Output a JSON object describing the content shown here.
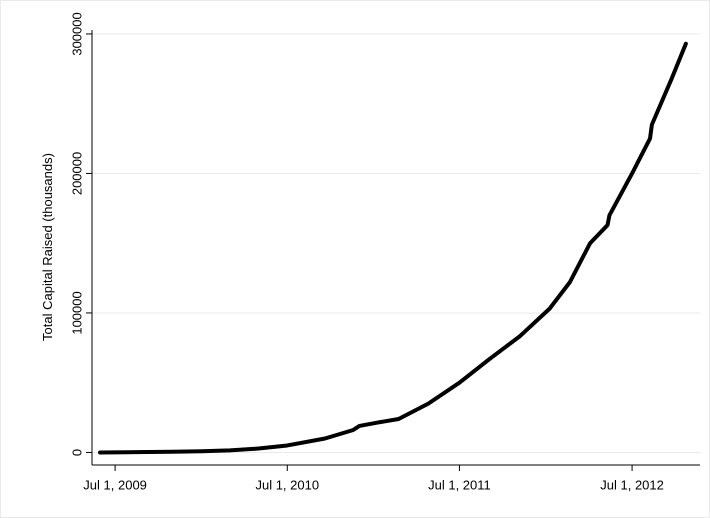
{
  "chart_data": {
    "type": "line",
    "ylabel": "Total Capital Raised (thousands)",
    "x": [
      "2009-05-30",
      "2009-08-15",
      "2009-10-30",
      "2010-01-01",
      "2010-03-01",
      "2010-05-01",
      "2010-07-01",
      "2010-09-19",
      "2010-11-17",
      "2010-12-01",
      "2011-01-10",
      "2011-02-22",
      "2011-04-26",
      "2011-07-01",
      "2011-09-03",
      "2011-11-05",
      "2012-01-08",
      "2012-02-20",
      "2012-04-03",
      "2012-05-10",
      "2012-05-14",
      "2012-07-01",
      "2012-08-08",
      "2012-08-12",
      "2012-09-23",
      "2012-10-23"
    ],
    "series": [
      {
        "name": "Total Capital Raised",
        "color": "#000000",
        "values": [
          0,
          200,
          500,
          900,
          1500,
          2800,
          5000,
          10000,
          16000,
          19000,
          21500,
          24000,
          35000,
          50000,
          67000,
          83000,
          103000,
          122000,
          150000,
          163000,
          170000,
          200000,
          225000,
          235000,
          268000,
          293000
        ]
      }
    ],
    "xlim": [
      "2009-05-13",
      "2012-11-22"
    ],
    "xticks": [
      {
        "value": "2009-07-01",
        "label": "Jul 1, 2009"
      },
      {
        "value": "2010-07-01",
        "label": "Jul 1, 2010"
      },
      {
        "value": "2011-07-01",
        "label": "Jul 1, 2011"
      },
      {
        "value": "2012-07-01",
        "label": "Jul 1, 2012"
      }
    ],
    "ylim": [
      -9000,
      310000
    ],
    "yticks": [
      0,
      100000,
      200000,
      300000
    ],
    "grid": true
  }
}
